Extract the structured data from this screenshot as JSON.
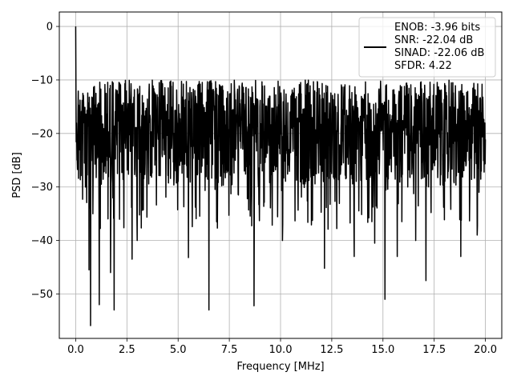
{
  "chart_data": {
    "type": "line",
    "xlabel": "Frequency [MHz]",
    "ylabel": "PSD [dB]",
    "xlim": [
      -0.8,
      20.8
    ],
    "ylim": [
      -58.3,
      2.7
    ],
    "grid": true,
    "x_ticks": [
      0.0,
      2.5,
      5.0,
      7.5,
      10.0,
      12.5,
      15.0,
      17.5,
      20.0
    ],
    "x_tick_labels": [
      "0.0",
      "2.5",
      "5.0",
      "7.5",
      "10.0",
      "12.5",
      "15.0",
      "17.5",
      "20.0"
    ],
    "y_ticks": [
      0,
      -10,
      -20,
      -30,
      -40,
      -50
    ],
    "y_tick_labels": [
      "0",
      "−10",
      "−20",
      "−30",
      "−40",
      "−50"
    ],
    "legend_position": "top-right",
    "legend_entries": [
      "ENOB: -3.96 bits",
      "SNR: -22.04 dB",
      "SINAD: -22.06 dB",
      "SFDR: 4.22"
    ],
    "series": [
      {
        "color": "#000000",
        "x_range": [
          0,
          20
        ],
        "num_points": 1600,
        "dc_peak_db": 0,
        "band_top_db": -10,
        "band_bottom_db": -28,
        "notable_dips": [
          {
            "x": 0.72,
            "y": -55.9
          },
          {
            "x": 1.15,
            "y": -52.0
          },
          {
            "x": 1.88,
            "y": -53.0
          },
          {
            "x": 1.7,
            "y": -46.0
          },
          {
            "x": 0.65,
            "y": -45.5
          },
          {
            "x": 2.75,
            "y": -43.5
          },
          {
            "x": 3.0,
            "y": -40.0
          },
          {
            "x": 5.5,
            "y": -43.2
          },
          {
            "x": 6.5,
            "y": -53.0
          },
          {
            "x": 8.7,
            "y": -52.2
          },
          {
            "x": 12.15,
            "y": -45.2
          },
          {
            "x": 13.6,
            "y": -43.0
          },
          {
            "x": 15.1,
            "y": -51.0
          },
          {
            "x": 15.7,
            "y": -43.0
          },
          {
            "x": 17.1,
            "y": -47.5
          },
          {
            "x": 18.8,
            "y": -43.0
          },
          {
            "x": 10.1,
            "y": -40.0
          },
          {
            "x": 14.6,
            "y": -40.5
          },
          {
            "x": 16.6,
            "y": -40.0
          },
          {
            "x": 19.6,
            "y": -39.0
          }
        ]
      }
    ]
  }
}
